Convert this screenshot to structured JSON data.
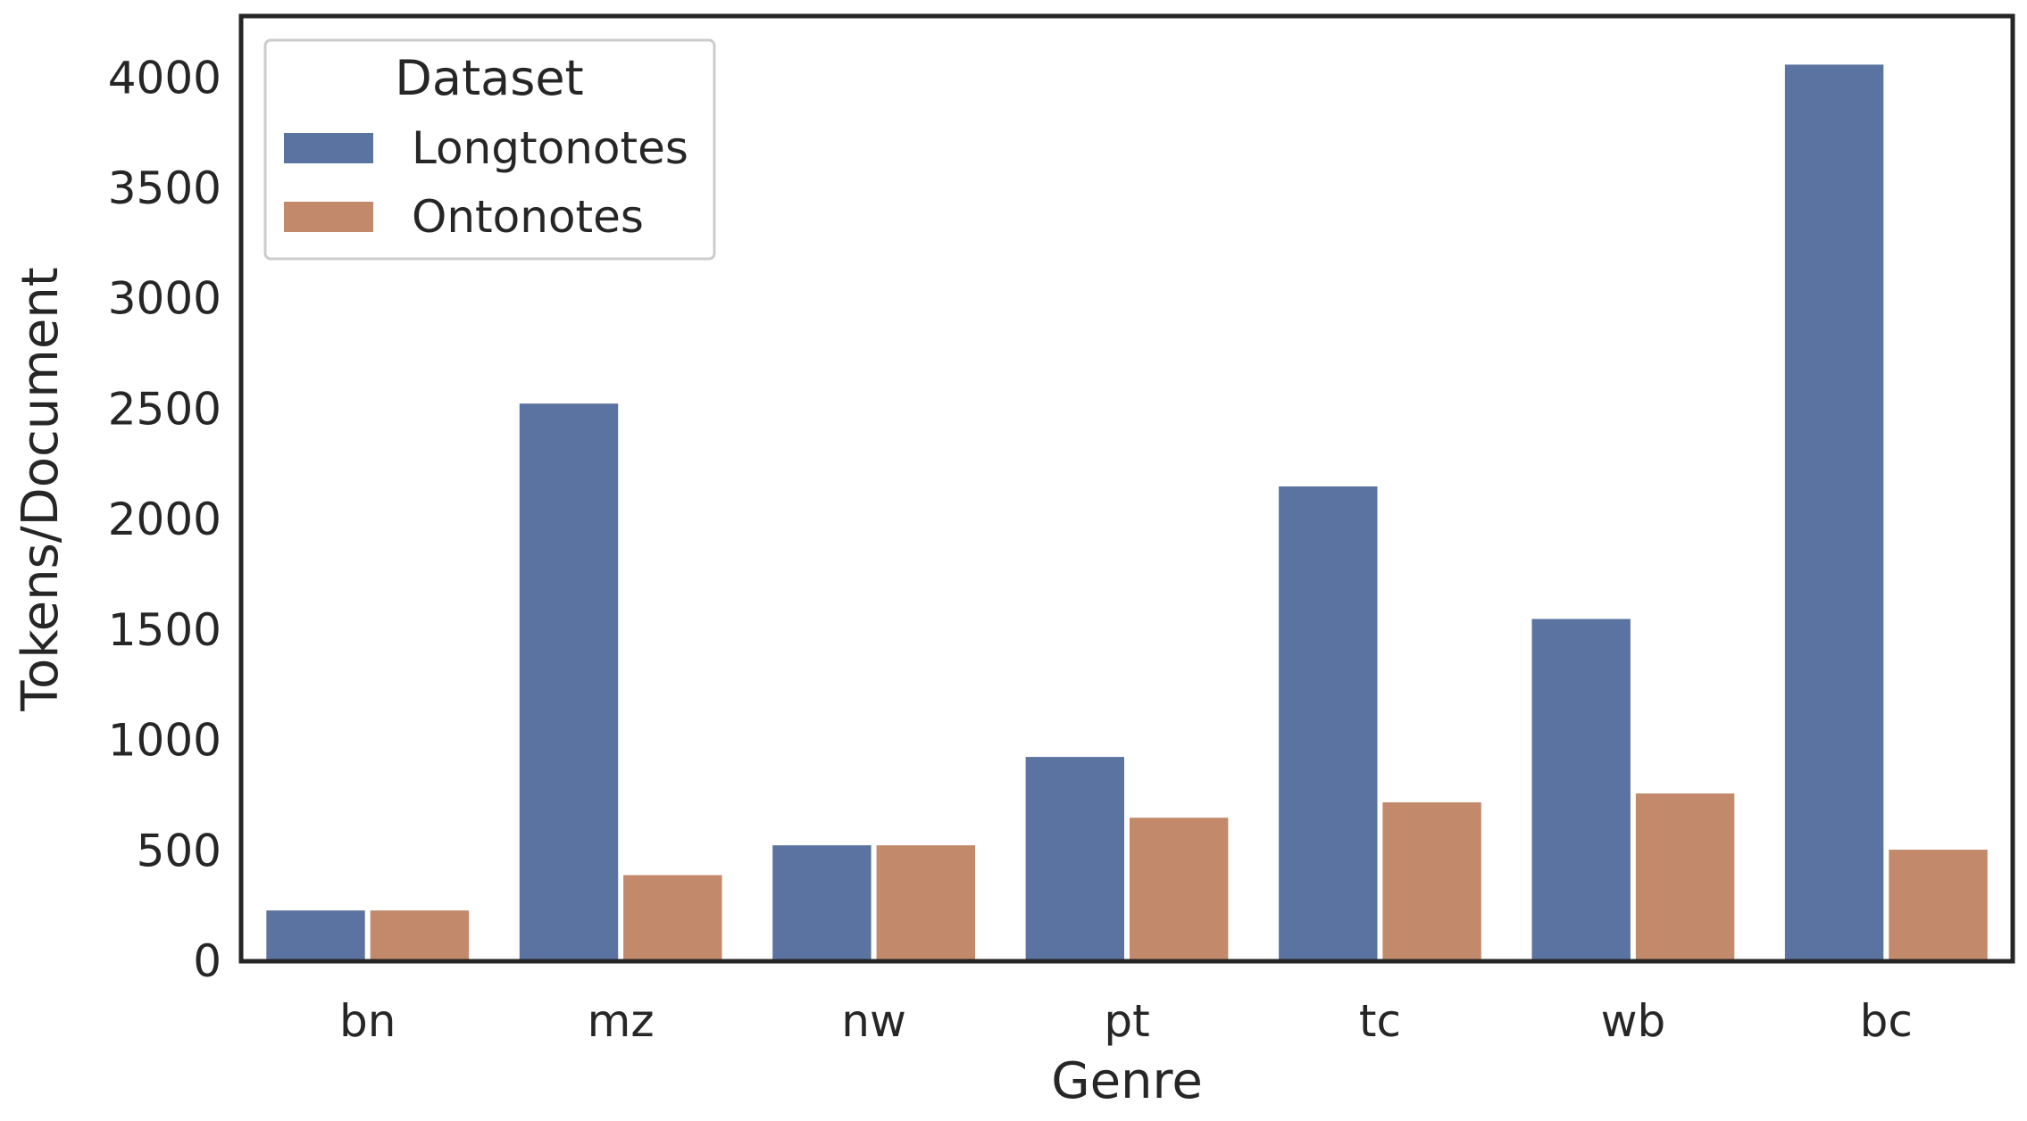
{
  "chart_data": {
    "type": "bar",
    "title": "",
    "xlabel": "Genre",
    "ylabel": "Tokens/Document",
    "categories": [
      "bn",
      "mz",
      "nw",
      "pt",
      "tc",
      "wb",
      "bc"
    ],
    "series": [
      {
        "name": "Longtonotes",
        "color": "#5b73a0",
        "values": [
          230,
          2525,
          525,
          925,
          2150,
          1550,
          4060
        ]
      },
      {
        "name": "Ontonotes",
        "color": "#c2896a",
        "values": [
          230,
          390,
          525,
          650,
          720,
          760,
          505
        ]
      }
    ],
    "yticks": [
      "0",
      "500",
      "1000",
      "1500",
      "2000",
      "2500",
      "3000",
      "3500",
      "4000"
    ],
    "ylim": [
      0,
      4280
    ],
    "grid": false,
    "legend": {
      "title": "Dataset",
      "placement": "top-left"
    }
  }
}
